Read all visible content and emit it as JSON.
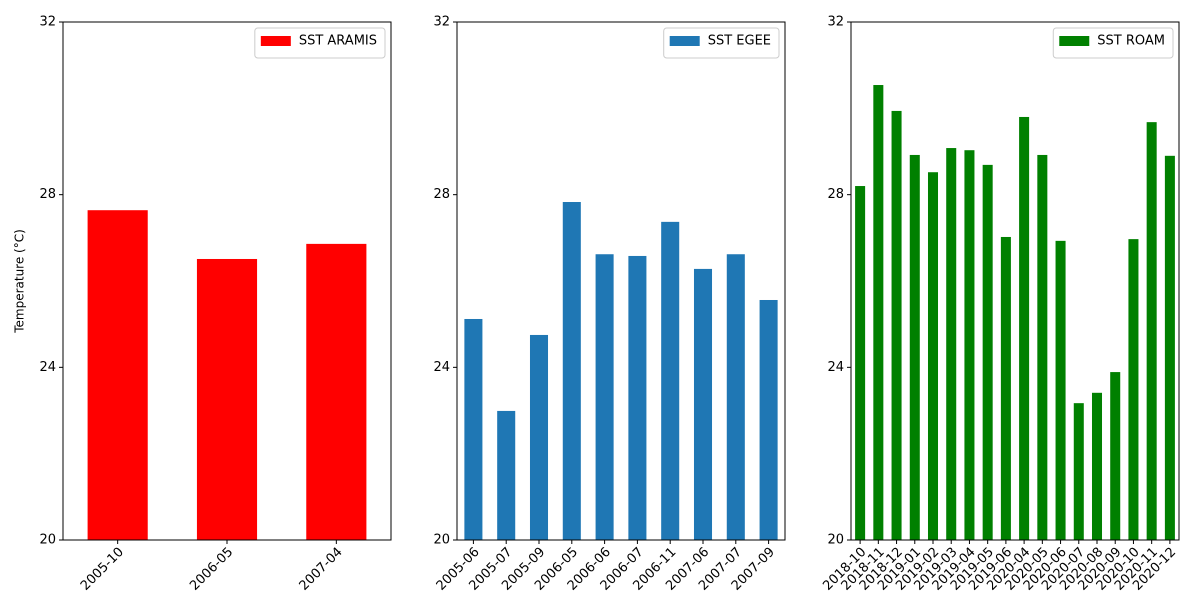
{
  "chart_data": [
    {
      "type": "bar",
      "ylabel": "Temperature (°C)",
      "categories": [
        "2005-10",
        "2006-05",
        "2007-04"
      ],
      "series": [
        {
          "name": "SST ARAMIS",
          "color": "#ff0000",
          "values": [
            27.64,
            26.51,
            26.86
          ]
        }
      ],
      "ylim": [
        20,
        32
      ],
      "yticks": [
        20,
        24,
        28,
        32
      ],
      "grid": false,
      "legend": "upper right"
    },
    {
      "type": "bar",
      "categories": [
        "2005-06",
        "2005-07",
        "2005-09",
        "2006-05",
        "2006-06",
        "2006-07",
        "2006-11",
        "2007-06",
        "2007-07",
        "2007-09"
      ],
      "series": [
        {
          "name": "SST EGEE",
          "color": "#1f77b4",
          "values": [
            25.12,
            22.99,
            24.75,
            27.83,
            26.62,
            26.58,
            27.37,
            26.28,
            26.62,
            25.56
          ]
        }
      ],
      "ylim": [
        20,
        32
      ],
      "yticks": [
        20,
        24,
        28,
        32
      ],
      "grid": false,
      "legend": "upper right"
    },
    {
      "type": "bar",
      "categories": [
        "2018-10",
        "2018-11",
        "2018-12",
        "2019-01",
        "2019-02",
        "2019-03",
        "2019-04",
        "2019-05",
        "2019-06",
        "2020-04",
        "2020-05",
        "2020-06",
        "2020-07",
        "2020-08",
        "2020-09",
        "2020-10",
        "2020-11",
        "2020-12"
      ],
      "series": [
        {
          "name": "SST ROAM",
          "color": "#008000",
          "values": [
            28.2,
            30.54,
            29.94,
            28.92,
            28.52,
            29.08,
            29.03,
            28.69,
            27.02,
            29.8,
            28.92,
            26.93,
            23.17,
            23.41,
            23.89,
            26.97,
            29.68,
            28.9
          ]
        }
      ],
      "ylim": [
        20,
        32
      ],
      "yticks": [
        20,
        24,
        28,
        32
      ],
      "grid": false,
      "legend": "upper right"
    }
  ]
}
